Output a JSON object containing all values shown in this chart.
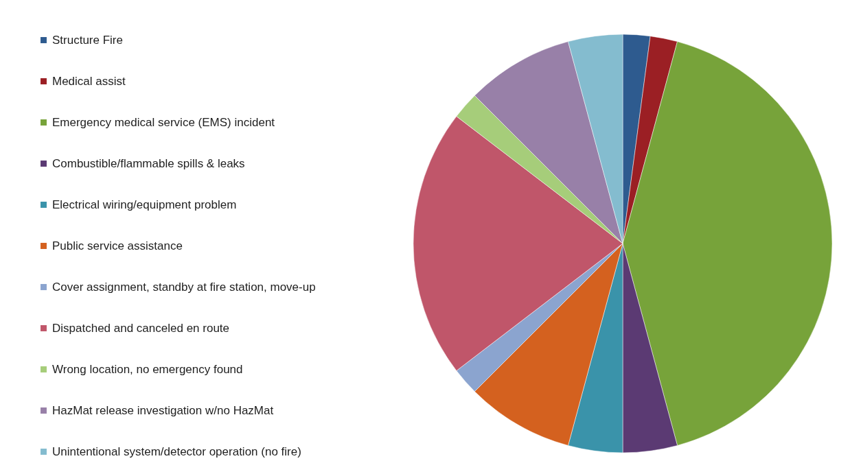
{
  "chart_data": {
    "type": "pie",
    "categories": [
      "Structure Fire",
      "Medical assist",
      "Emergency medical service (EMS) incident",
      "Combustible/flammable spills & leaks",
      "Electrical wiring/equipment problem",
      "Public service assistance",
      "Cover assignment, standby at fire station, move-up",
      "Dispatched and canceled en route",
      "Wrong location, no emergency found",
      "HazMat release investigation w/no HazMat",
      "Unintentional system/detector operation (no fire)"
    ],
    "values": [
      2.1,
      2.1,
      41.6,
      4.2,
      4.2,
      8.3,
      2.1,
      20.8,
      2.1,
      8.3,
      4.2
    ],
    "colors": [
      "#2e5b8f",
      "#9b1f24",
      "#77a33a",
      "#5b3a73",
      "#3a93aa",
      "#d4611f",
      "#8ba4cf",
      "#c0566a",
      "#a6cd7a",
      "#9880a8",
      "#84bccf"
    ],
    "legend": "left"
  }
}
